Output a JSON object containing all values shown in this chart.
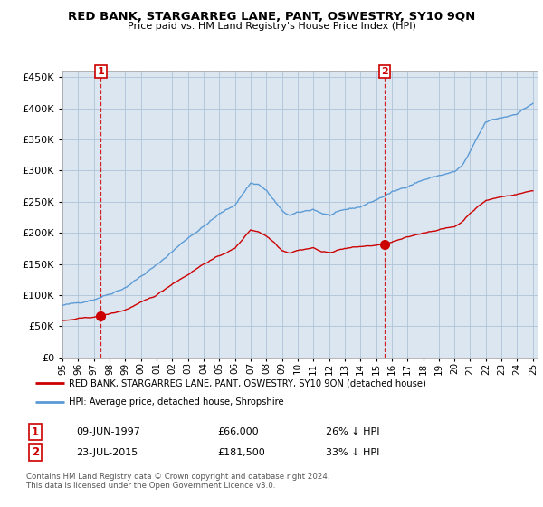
{
  "title": "RED BANK, STARGARREG LANE, PANT, OSWESTRY, SY10 9QN",
  "subtitle": "Price paid vs. HM Land Registry's House Price Index (HPI)",
  "ylim": [
    0,
    460000
  ],
  "yticks": [
    0,
    50000,
    100000,
    150000,
    200000,
    250000,
    300000,
    350000,
    400000,
    450000
  ],
  "legend_line1": "RED BANK, STARGARREG LANE, PANT, OSWESTRY, SY10 9QN (detached house)",
  "legend_line2": "HPI: Average price, detached house, Shropshire",
  "annotation1_date": "09-JUN-1997",
  "annotation1_price": "£66,000",
  "annotation1_hpi": "26% ↓ HPI",
  "annotation2_date": "23-JUL-2015",
  "annotation2_price": "£181,500",
  "annotation2_hpi": "33% ↓ HPI",
  "footer": "Contains HM Land Registry data © Crown copyright and database right 2024.\nThis data is licensed under the Open Government Licence v3.0.",
  "hpi_color": "#5b9bd5",
  "sale_color": "#cc0000",
  "chart_bg": "#dce6f1",
  "background_color": "#ffffff",
  "grid_color": "#aec3d9",
  "sale1_year": 1997.45,
  "sale2_year": 2015.55,
  "sale1_price": 66000,
  "sale2_price": 181500
}
